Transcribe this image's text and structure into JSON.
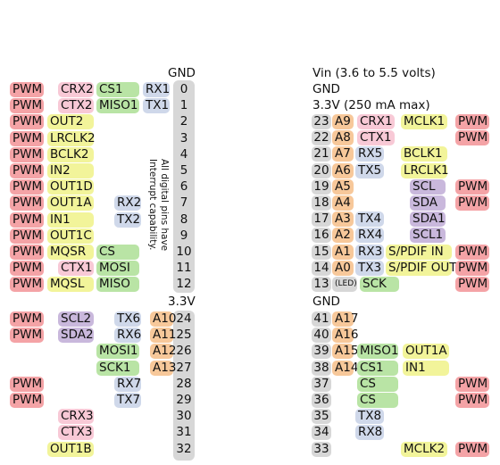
{
  "colors": {
    "pwm": "#f4a3a6",
    "can": "#f8c9d6",
    "i2c": "#c9b8dc",
    "serial": "#cfd8ea",
    "audio": "#f2f49a",
    "spi": "#b9e4a5",
    "analog": "#f7c89a",
    "pin": "#d7d7d7",
    "led": "#d7d7d7"
  },
  "left_header": {
    "top_labels": {
      "gnd": "GND",
      "v33": "3.3V"
    },
    "note": "All digital pins have\nInterrupt capability.",
    "rows": [
      {
        "pin": "0",
        "pwm": "PWM",
        "can": "CRX2",
        "spi": "CS1",
        "serial": "RX1"
      },
      {
        "pin": "1",
        "pwm": "PWM",
        "can": "CTX2",
        "spi": "MISO1",
        "serial": "TX1"
      },
      {
        "pin": "2",
        "pwm": "PWM",
        "audio": "OUT2"
      },
      {
        "pin": "3",
        "pwm": "PWM",
        "audio": "LRCLK2"
      },
      {
        "pin": "4",
        "pwm": "PWM",
        "audio": "BCLK2"
      },
      {
        "pin": "5",
        "pwm": "PWM",
        "audio": "IN2"
      },
      {
        "pin": "6",
        "pwm": "PWM",
        "audio": "OUT1D"
      },
      {
        "pin": "7",
        "pwm": "PWM",
        "audio": "OUT1A",
        "serial": "RX2"
      },
      {
        "pin": "8",
        "pwm": "PWM",
        "audio": "IN1",
        "serial": "TX2"
      },
      {
        "pin": "9",
        "pwm": "PWM",
        "audio": "OUT1C"
      },
      {
        "pin": "10",
        "pwm": "PWM",
        "audio": "MQSR",
        "spi": "CS"
      },
      {
        "pin": "11",
        "pwm": "PWM",
        "can": "CTX1",
        "spi": "MOSI"
      },
      {
        "pin": "12",
        "pwm": "PWM",
        "audio": "MQSL",
        "spi": "MISO"
      }
    ],
    "rows2": [
      {
        "pin": "24",
        "pwm": "PWM",
        "i2c": "SCL2",
        "serial": "TX6",
        "analog": "A10"
      },
      {
        "pin": "25",
        "pwm": "PWM",
        "i2c": "SDA2",
        "serial": "RX6",
        "analog": "A11"
      },
      {
        "pin": "26",
        "spi": "MOSI1",
        "analog": "A12"
      },
      {
        "pin": "27",
        "spi": "SCK1",
        "analog": "A13"
      },
      {
        "pin": "28",
        "pwm": "PWM",
        "serial": "RX7"
      },
      {
        "pin": "29",
        "pwm": "PWM",
        "serial": "TX7"
      },
      {
        "pin": "30",
        "can": "CRX3"
      },
      {
        "pin": "31",
        "can": "CTX3"
      },
      {
        "pin": "32",
        "audio": "OUT1B"
      }
    ]
  },
  "right_header": {
    "top_labels": {
      "vin": "Vin  (3.6 to 5.5 volts)",
      "gnd": "GND",
      "v33": "3.3V (250 mA max)",
      "gnd2": "GND"
    },
    "led_label": "(LED)",
    "rows": [
      {
        "pin": "23",
        "analog": "A9",
        "can": "CRX1",
        "audio": "MCLK1",
        "pwm": "PWM"
      },
      {
        "pin": "22",
        "analog": "A8",
        "can": "CTX1",
        "pwm": "PWM"
      },
      {
        "pin": "21",
        "analog": "A7",
        "serial": "RX5",
        "audio": "BCLK1"
      },
      {
        "pin": "20",
        "analog": "A6",
        "serial": "TX5",
        "audio": "LRCLK1"
      },
      {
        "pin": "19",
        "analog": "A5",
        "i2c": "SCL",
        "pwm": "PWM"
      },
      {
        "pin": "18",
        "analog": "A4",
        "i2c": "SDA",
        "pwm": "PWM"
      },
      {
        "pin": "17",
        "analog": "A3",
        "serial": "TX4",
        "i2c": "SDA1"
      },
      {
        "pin": "16",
        "analog": "A2",
        "serial": "RX4",
        "i2c": "SCL1"
      },
      {
        "pin": "15",
        "analog": "A1",
        "serial": "RX3",
        "audio": "S/PDIF IN",
        "pwm": "PWM"
      },
      {
        "pin": "14",
        "analog": "A0",
        "serial": "TX3",
        "audio": "S/PDIF OUT",
        "pwm": "PWM"
      },
      {
        "pin": "13",
        "led": "(LED)",
        "spi": "SCK",
        "pwm": "PWM"
      }
    ],
    "rows2": [
      {
        "pin": "41",
        "analog": "A17"
      },
      {
        "pin": "40",
        "analog": "A16"
      },
      {
        "pin": "39",
        "analog": "A15",
        "spi": "MISO1",
        "audio": "OUT1A"
      },
      {
        "pin": "38",
        "analog": "A14",
        "spi": "CS1",
        "audio": "IN1"
      },
      {
        "pin": "37",
        "spi": "CS",
        "pwm": "PWM"
      },
      {
        "pin": "36",
        "spi": "CS",
        "pwm": "PWM"
      },
      {
        "pin": "35",
        "serial": "TX8"
      },
      {
        "pin": "34",
        "serial": "RX8"
      },
      {
        "pin": "33",
        "audio": "MCLK2",
        "pwm": "PWM"
      }
    ]
  }
}
